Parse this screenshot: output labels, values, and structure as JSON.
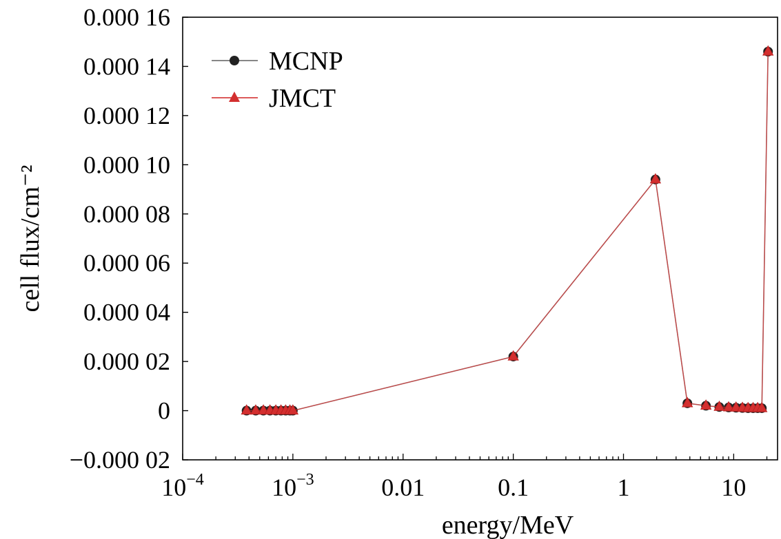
{
  "chart_data": {
    "type": "line",
    "xscale": "log",
    "xlabel": "energy/MeV",
    "ylabel": "cell flux/cm⁻²",
    "xlim": [
      0.0001,
      25
    ],
    "ylim": [
      -2e-05,
      0.00016
    ],
    "xticks": [
      {
        "value": 0.0001,
        "base": "10",
        "exp": "−4"
      },
      {
        "value": 0.001,
        "base": "10",
        "exp": "−3"
      },
      {
        "value": 0.01,
        "label": "0.01"
      },
      {
        "value": 0.1,
        "label": "0.1"
      },
      {
        "value": 1,
        "label": "1"
      },
      {
        "value": 10,
        "label": "10"
      }
    ],
    "yticks": [
      {
        "value": 0.00016,
        "label": "0.000 16"
      },
      {
        "value": 0.00014,
        "label": "0.000 14"
      },
      {
        "value": 0.00012,
        "label": "0.000 12"
      },
      {
        "value": 0.0001,
        "label": "0.000 10"
      },
      {
        "value": 8e-05,
        "label": "0.000 08"
      },
      {
        "value": 6e-05,
        "label": "0.000 06"
      },
      {
        "value": 4e-05,
        "label": "0.000 04"
      },
      {
        "value": 2e-05,
        "label": "0.000 02"
      },
      {
        "value": 0,
        "label": "0"
      },
      {
        "value": -2e-05,
        "label": "−0.000 02"
      }
    ],
    "legend_position": "top-left",
    "series": [
      {
        "name": "MCNP",
        "color": "#222222",
        "marker": "circle",
        "x": [
          0.00038,
          0.00046,
          0.00054,
          0.00062,
          0.0007,
          0.00078,
          0.00086,
          0.00094,
          0.001,
          0.1,
          1.95,
          3.8,
          5.6,
          7.4,
          9.0,
          10.5,
          12.0,
          13.5,
          15.0,
          16.5,
          18.0,
          20.5
        ],
        "y": [
          0,
          0,
          0,
          0,
          0,
          0,
          0,
          0,
          0,
          2.2e-05,
          9.4e-05,
          3e-06,
          2e-06,
          1.5e-06,
          1.3e-06,
          1.2e-06,
          1.1e-06,
          1e-06,
          1e-06,
          1e-06,
          1e-06,
          0.000146
        ]
      },
      {
        "name": "JMCT",
        "color": "#d32f2f",
        "marker": "triangle",
        "x": [
          0.00038,
          0.00046,
          0.00054,
          0.00062,
          0.0007,
          0.00078,
          0.00086,
          0.00094,
          0.001,
          0.1,
          1.95,
          3.8,
          5.6,
          7.4,
          9.0,
          10.5,
          12.0,
          13.5,
          15.0,
          16.5,
          18.0,
          20.5
        ],
        "y": [
          0,
          0,
          0,
          0,
          0,
          0,
          0,
          0,
          0,
          2.2e-05,
          9.4e-05,
          3e-06,
          2e-06,
          1.5e-06,
          1.3e-06,
          1.2e-06,
          1.1e-06,
          1e-06,
          1e-06,
          1e-06,
          1e-06,
          0.000146
        ]
      }
    ]
  }
}
